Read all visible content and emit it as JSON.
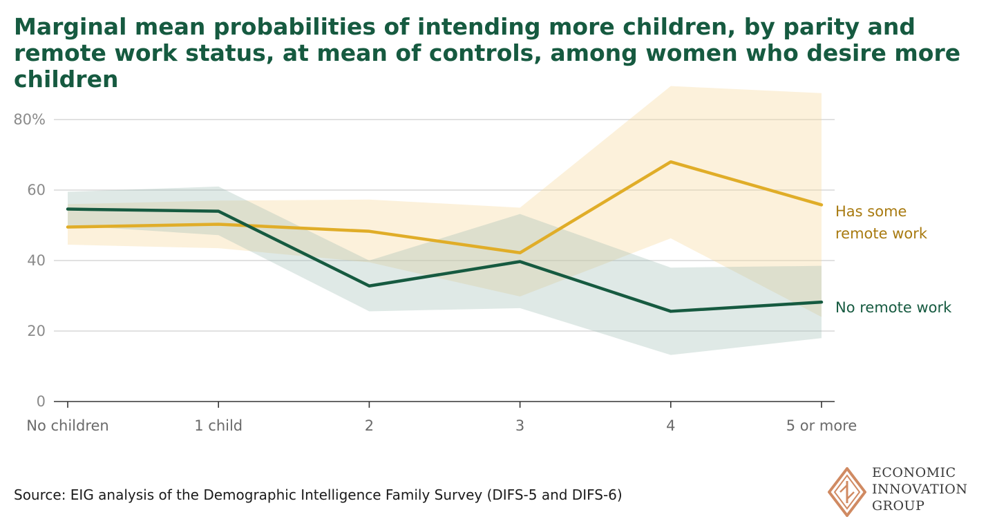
{
  "title": "Marginal mean probabilities of intending more children, by parity and remote work status, at mean of controls, among women who desire more children",
  "source": "Source: EIG analysis of the Demographic Intelligence Family Survey (DIFS-5 and DIFS-6)",
  "logo": {
    "lines": [
      "ECONOMIC",
      "INNOVATION",
      "GROUP"
    ]
  },
  "colors": {
    "remote": "#e0ad28",
    "remote_label": "#a87a10",
    "no_remote": "#165a40"
  },
  "chart_data": {
    "type": "line",
    "categories": [
      "No children",
      "1 child",
      "2",
      "3",
      "4",
      "5 or more"
    ],
    "y_ticks": [
      {
        "value": 0,
        "label": "0"
      },
      {
        "value": 20,
        "label": "20"
      },
      {
        "value": 40,
        "label": "40"
      },
      {
        "value": 60,
        "label": "60"
      },
      {
        "value": 80,
        "label": "80%"
      }
    ],
    "ylim": [
      0,
      90
    ],
    "grid": true,
    "series": [
      {
        "name": "Has some remote work",
        "label_lines": [
          "Has some",
          "remote work"
        ],
        "values": [
          49.5,
          50.3,
          48.3,
          42.2,
          68.0,
          55.8
        ],
        "lower": [
          44.5,
          43.5,
          39.5,
          29.8,
          46.3,
          24.0
        ],
        "upper": [
          56.0,
          57.0,
          57.3,
          55.0,
          89.5,
          87.5
        ]
      },
      {
        "name": "No remote work",
        "label_lines": [
          "No remote work"
        ],
        "values": [
          54.6,
          54.0,
          32.8,
          39.7,
          25.6,
          28.2
        ],
        "lower": [
          50.0,
          47.2,
          25.6,
          26.5,
          13.2,
          18.0
        ],
        "upper": [
          59.5,
          61.0,
          40.0,
          53.2,
          38.0,
          38.5
        ]
      }
    ]
  }
}
